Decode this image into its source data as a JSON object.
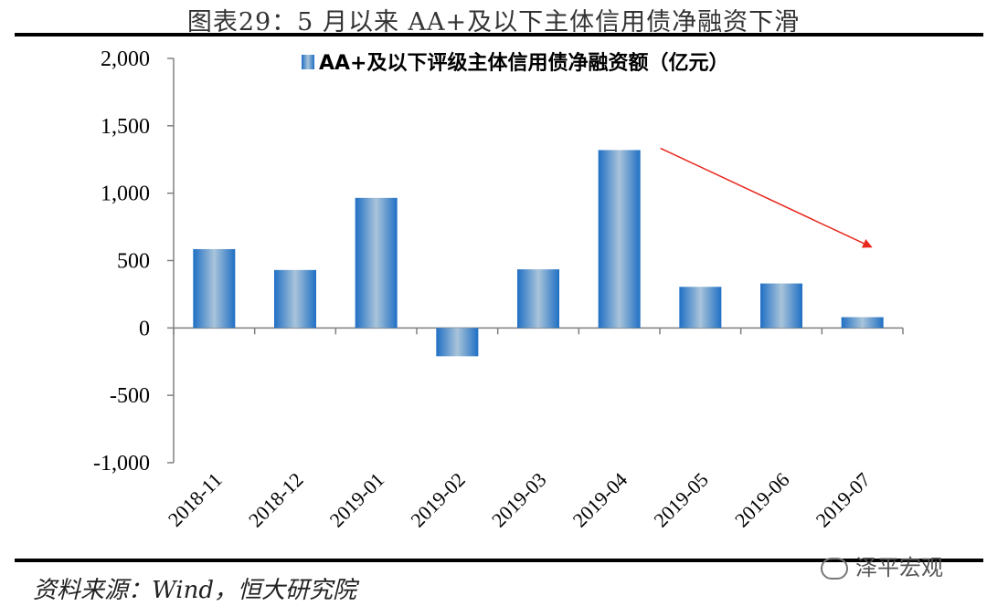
{
  "header": {
    "title": "图表29：5 月以来 AA+及以下主体信用债净融资下滑"
  },
  "footer": {
    "source": "资料来源：Wind，恒大研究院",
    "watermark": "泽平宏观"
  },
  "colors": {
    "bar_edge": "#1f6fc4",
    "bar_center": "#a9c4da",
    "arrow": "#e8271d",
    "axis": "#808080"
  },
  "chart_data": {
    "type": "bar",
    "title": "",
    "xlabel": "",
    "ylabel": "",
    "categories": [
      "2018-11",
      "2018-12",
      "2019-01",
      "2019-02",
      "2019-03",
      "2019-04",
      "2019-05",
      "2019-06",
      "2019-07"
    ],
    "series": [
      {
        "name": "AA+及以下评级主体信用债净融资额（亿元）",
        "values": [
          585,
          430,
          965,
          -210,
          435,
          1320,
          305,
          330,
          80
        ]
      }
    ],
    "ylim": [
      -1000,
      2000
    ],
    "yticks": [
      -1000,
      -500,
      0,
      500,
      1000,
      1500,
      2000
    ],
    "ytick_labels": [
      "-1,000",
      "-500",
      "0",
      "500",
      "1,000",
      "1,500",
      "2,000"
    ],
    "legend_position": "top",
    "grid": false,
    "annotations": [
      {
        "type": "arrow",
        "direction": "down-right",
        "from_category": "2019-04",
        "to_category": "2019-07"
      }
    ]
  }
}
